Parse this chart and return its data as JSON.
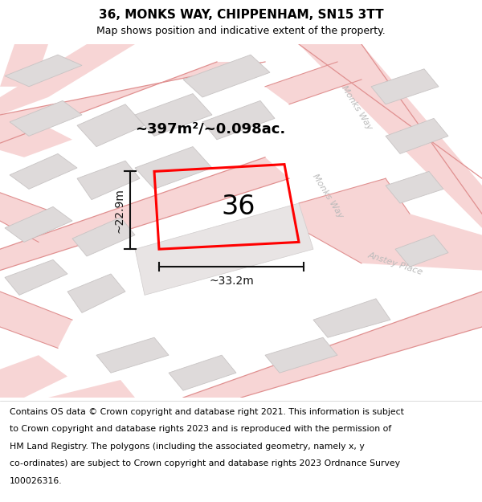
{
  "title": "36, MONKS WAY, CHIPPENHAM, SN15 3TT",
  "subtitle": "Map shows position and indicative extent of the property.",
  "footer_lines": [
    "Contains OS data © Crown copyright and database right 2021. This information is subject",
    "to Crown copyright and database rights 2023 and is reproduced with the permission of",
    "HM Land Registry. The polygons (including the associated geometry, namely x, y",
    "co-ordinates) are subject to Crown copyright and database rights 2023 Ordnance Survey",
    "100026316."
  ],
  "area_label": "~397m²/~0.098ac.",
  "property_number": "36",
  "width_label": "~33.2m",
  "height_label": "~22.9m",
  "map_bg": "#eeecec",
  "road_fill": "#f7d5d5",
  "road_line": "#e09090",
  "building_fill": "#dedada",
  "building_edge": "#c8c4c4",
  "plot_color": "#ff0000",
  "dim_color": "#111111",
  "label_color": "#bbbbbb",
  "title_fontsize": 11,
  "subtitle_fontsize": 9,
  "footer_fontsize": 7.8,
  "area_fontsize": 13,
  "number_fontsize": 24,
  "dim_fontsize": 10,
  "road_label_fontsize": 8
}
